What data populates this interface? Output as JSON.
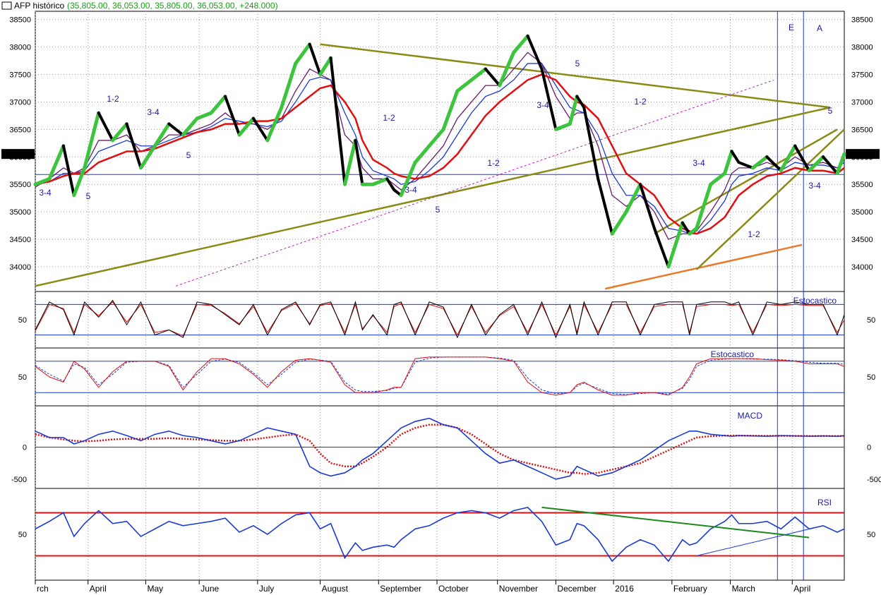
{
  "window": {
    "title": "AFP histórico",
    "ohlc": "(35,805.00, 36,053.00, 35,805.00, 36,053.00, +248.000)",
    "last_price": "36053.00"
  },
  "colors": {
    "price_up": "#3cc43c",
    "price_down": "#000000",
    "ma_fast": "#6b1a6b",
    "ma_mid": "#1a3ad6",
    "ma_slow": "#e01010",
    "trendline": "#8a8a14",
    "dotted": "#c020c0",
    "orange_line": "#e87a2a",
    "indicator_main": "#1a3ad6",
    "signal": "#e01010",
    "rsi_trend": "#1a8a1a",
    "bg": "#ffffff"
  },
  "x_axis": {
    "months": [
      "rch",
      "April",
      "May",
      "June",
      "July",
      "August",
      "September",
      "October",
      "November",
      "December",
      "2016",
      "February",
      "March",
      "April"
    ],
    "range": [
      0,
      1150
    ]
  },
  "price_axis": {
    "ticks": [
      "38500",
      "38000",
      "37500",
      "37000",
      "36500",
      "36000",
      "35500",
      "35000",
      "34500",
      "34000"
    ],
    "ylim": [
      33550,
      38650
    ]
  },
  "panels": [
    {
      "label": "Estocastico",
      "tick": "50"
    },
    {
      "label": "Estocastico",
      "tick": "50"
    },
    {
      "label": "MACD",
      "ticks": [
        "0",
        "-500"
      ]
    },
    {
      "label": "RSI",
      "tick": "50"
    }
  ],
  "annotations": [
    {
      "t": "3-4"
    },
    {
      "t": "5"
    },
    {
      "t": "1-2"
    },
    {
      "t": "3-4"
    },
    {
      "t": "5"
    },
    {
      "t": "1-2"
    },
    {
      "t": "3-4"
    },
    {
      "t": "5"
    },
    {
      "t": "1-2"
    },
    {
      "t": "3-4"
    },
    {
      "t": "5"
    },
    {
      "t": "1-2"
    },
    {
      "t": "3-4"
    },
    {
      "t": "1-2"
    },
    {
      "t": "3-4"
    },
    {
      "t": "5"
    },
    {
      "t": "E"
    },
    {
      "t": "A"
    }
  ],
  "chart_data": {
    "type": "line",
    "title": "AFP histórico",
    "x_unit": "trading day index (March 2015 – April 2016)",
    "price": {
      "x": [
        0,
        20,
        40,
        55,
        70,
        90,
        110,
        130,
        150,
        170,
        190,
        210,
        230,
        250,
        270,
        290,
        310,
        330,
        350,
        370,
        390,
        405,
        420,
        440,
        455,
        465,
        480,
        500,
        510,
        520,
        540,
        560,
        580,
        600,
        620,
        640,
        660,
        680,
        700,
        720,
        740,
        760,
        770,
        780,
        800,
        820,
        840,
        860,
        880,
        900,
        920,
        930,
        940,
        960,
        980,
        990,
        1000,
        1020,
        1040,
        1060,
        1080,
        1100,
        1120,
        1140,
        1150
      ],
      "y": [
        35500,
        35600,
        36200,
        35300,
        35800,
        36800,
        36300,
        36600,
        35800,
        36200,
        36600,
        36400,
        36700,
        36800,
        37100,
        36400,
        36700,
        36300,
        36900,
        37700,
        38050,
        37500,
        37800,
        35500,
        36300,
        35500,
        35500,
        35600,
        35400,
        35300,
        35900,
        36200,
        36500,
        37200,
        37400,
        37600,
        37300,
        37900,
        38200,
        37600,
        36500,
        36600,
        37100,
        36900,
        35600,
        34600,
        35000,
        35500,
        34700,
        34000,
        34800,
        34600,
        34700,
        35500,
        35700,
        36100,
        35900,
        35800,
        36000,
        35750,
        36200,
        35750,
        36000,
        35700,
        36053
      ]
    },
    "moving_averages": [
      {
        "name": "MA fast",
        "y": [
          35450,
          35600,
          35800,
          35700,
          35800,
          36300,
          36300,
          36400,
          36100,
          36200,
          36400,
          36400,
          36500,
          36600,
          36800,
          36600,
          36600,
          36500,
          36700,
          37200,
          37600,
          37500,
          37400,
          36400,
          36200,
          35800,
          35600,
          35600,
          35500,
          35400,
          35600,
          35900,
          36200,
          36700,
          37000,
          37300,
          37300,
          37600,
          37900,
          37700,
          37100,
          36700,
          36800,
          36800,
          36200,
          35300,
          35100,
          35300,
          35000,
          34500,
          34600,
          34600,
          34650,
          35000,
          35400,
          35700,
          35800,
          35800,
          35900,
          35800,
          36000,
          35850,
          35900,
          35800,
          35950
        ]
      },
      {
        "name": "MA mid",
        "y": [
          35500,
          35550,
          35700,
          35700,
          35750,
          36100,
          36200,
          36300,
          36200,
          36200,
          36300,
          36400,
          36450,
          36550,
          36700,
          36650,
          36600,
          36550,
          36650,
          37000,
          37400,
          37450,
          37400,
          36800,
          36400,
          36000,
          35750,
          35650,
          35600,
          35500,
          35550,
          35750,
          36000,
          36400,
          36800,
          37100,
          37200,
          37400,
          37700,
          37700,
          37300,
          36900,
          36850,
          36800,
          36400,
          35700,
          35300,
          35300,
          35100,
          34700,
          34650,
          34600,
          34600,
          34850,
          35200,
          35500,
          35650,
          35700,
          35800,
          35750,
          35900,
          35850,
          35850,
          35800,
          35900
        ]
      },
      {
        "name": "MA slow",
        "y": [
          35500,
          35550,
          35650,
          35700,
          35700,
          35900,
          36000,
          36100,
          36100,
          36150,
          36250,
          36350,
          36450,
          36500,
          36600,
          36600,
          36650,
          36650,
          36700,
          36900,
          37100,
          37250,
          37300,
          37000,
          36700,
          36300,
          35950,
          35800,
          35700,
          35650,
          35600,
          35650,
          35800,
          36050,
          36400,
          36750,
          37000,
          37200,
          37400,
          37500,
          37400,
          37100,
          37000,
          36950,
          36700,
          36200,
          35700,
          35500,
          35300,
          34900,
          34700,
          34650,
          34600,
          34700,
          34900,
          35100,
          35300,
          35500,
          35650,
          35700,
          35800,
          35750,
          35750,
          35700,
          35800
        ]
      }
    ],
    "trendlines": [
      {
        "from": [
          0,
          33650
        ],
        "to": [
          1130,
          36900
        ]
      },
      {
        "from": [
          405,
          38050
        ],
        "to": [
          1130,
          36900
        ]
      },
      {
        "from": [
          200,
          33650
        ],
        "to": [
          1050,
          37400
        ]
      },
      {
        "from": [
          810,
          33600
        ],
        "to": [
          1090,
          34400
        ]
      },
      {
        "from": [
          880,
          34600
        ],
        "to": [
          1140,
          36500
        ]
      },
      {
        "from": [
          940,
          33950
        ],
        "to": [
          1150,
          36500
        ]
      }
    ],
    "horizontal_level": 35680,
    "vertical_markers_x": [
      1055,
      1092
    ],
    "stochastic_1": {
      "levels": [
        80,
        20
      ],
      "k": [
        30,
        85,
        70,
        20,
        85,
        55,
        88,
        40,
        85,
        20,
        30,
        15,
        85,
        80,
        60,
        40,
        80,
        20,
        70,
        85,
        40,
        80,
        85,
        20,
        85,
        30,
        60,
        20,
        80,
        85,
        20,
        85,
        75,
        15,
        80,
        20,
        60,
        80,
        20,
        85,
        15,
        80,
        20,
        85,
        20,
        85,
        85,
        20,
        80,
        85,
        85,
        20,
        80,
        85,
        85,
        80,
        85,
        20,
        85,
        80,
        85,
        80,
        80,
        20,
        60
      ],
      "d": [
        28,
        80,
        72,
        25,
        80,
        58,
        85,
        45,
        80,
        25,
        30,
        18,
        80,
        78,
        62,
        42,
        76,
        25,
        68,
        82,
        42,
        78,
        82,
        25,
        80,
        32,
        58,
        25,
        76,
        82,
        25,
        80,
        72,
        20,
        76,
        25,
        58,
        76,
        25,
        80,
        20,
        76,
        25,
        80,
        25,
        80,
        80,
        25,
        76,
        80,
        80,
        25,
        76,
        80,
        80,
        78,
        80,
        25,
        80,
        78,
        80,
        78,
        78,
        25,
        50
      ]
    },
    "stochastic_2": {
      "levels": [
        80,
        20
      ],
      "k": [
        70,
        50,
        40,
        80,
        65,
        30,
        60,
        80,
        80,
        80,
        70,
        25,
        60,
        85,
        85,
        75,
        55,
        30,
        60,
        82,
        85,
        82,
        78,
        35,
        20,
        20,
        20,
        25,
        30,
        30,
        85,
        88,
        88,
        88,
        88,
        88,
        85,
        80,
        40,
        20,
        15,
        20,
        35,
        40,
        25,
        15,
        15,
        20,
        20,
        15,
        30,
        50,
        75,
        85,
        85,
        85,
        85,
        85,
        83,
        82,
        80,
        75,
        75,
        75,
        70
      ],
      "d": [
        72,
        55,
        42,
        75,
        68,
        35,
        55,
        78,
        80,
        80,
        72,
        30,
        55,
        80,
        84,
        78,
        58,
        35,
        55,
        78,
        84,
        82,
        80,
        40,
        25,
        22,
        22,
        24,
        28,
        30,
        78,
        86,
        88,
        88,
        88,
        88,
        86,
        82,
        48,
        25,
        18,
        20,
        32,
        38,
        28,
        18,
        16,
        18,
        20,
        17,
        28,
        45,
        70,
        82,
        84,
        85,
        85,
        84,
        84,
        83,
        81,
        78,
        76,
        76,
        74
      ]
    },
    "macd": {
      "ylim": [
        -600,
        600
      ],
      "macd": [
        250,
        150,
        150,
        50,
        100,
        200,
        250,
        180,
        100,
        200,
        250,
        180,
        150,
        100,
        50,
        100,
        200,
        300,
        250,
        200,
        -300,
        -400,
        -450,
        -400,
        -300,
        -200,
        -100,
        100,
        200,
        300,
        400,
        450,
        350,
        300,
        100,
        -100,
        -250,
        -200,
        -300,
        -400,
        -500,
        -450,
        -300,
        -350,
        -450,
        -400,
        -300,
        -200,
        -50,
        100,
        200,
        250,
        250,
        200,
        180,
        170,
        180,
        175,
        170,
        180,
        175,
        170,
        175,
        170,
        180
      ],
      "signal": [
        200,
        150,
        120,
        100,
        90,
        100,
        120,
        130,
        130,
        130,
        140,
        130,
        120,
        110,
        100,
        100,
        120,
        150,
        180,
        200,
        100,
        -100,
        -250,
        -300,
        -300,
        -250,
        -150,
        0,
        100,
        200,
        300,
        350,
        350,
        300,
        200,
        50,
        -100,
        -200,
        -250,
        -300,
        -350,
        -400,
        -400,
        -420,
        -400,
        -350,
        -300,
        -250,
        -150,
        -50,
        50,
        100,
        150,
        170,
        180,
        180,
        180,
        178,
        176,
        176,
        175,
        174,
        174,
        173,
        173
      ]
    },
    "rsi": {
      "levels": [
        70,
        30
      ],
      "values": [
        55,
        62,
        70,
        48,
        60,
        72,
        60,
        62,
        48,
        55,
        62,
        58,
        60,
        62,
        65,
        52,
        58,
        50,
        60,
        68,
        70,
        55,
        60,
        28,
        42,
        35,
        38,
        40,
        38,
        45,
        55,
        58,
        65,
        70,
        72,
        70,
        65,
        72,
        75,
        62,
        40,
        45,
        60,
        58,
        45,
        25,
        38,
        45,
        40,
        25,
        45,
        40,
        42,
        55,
        62,
        68,
        60,
        60,
        62,
        55,
        66,
        55,
        58,
        52,
        55
      ],
      "trendlines": [
        {
          "from": [
            720,
            75
          ],
          "to": [
            1100,
            47
          ]
        },
        {
          "from": [
            940,
            30
          ],
          "to": [
            1120,
            58
          ]
        }
      ]
    }
  }
}
